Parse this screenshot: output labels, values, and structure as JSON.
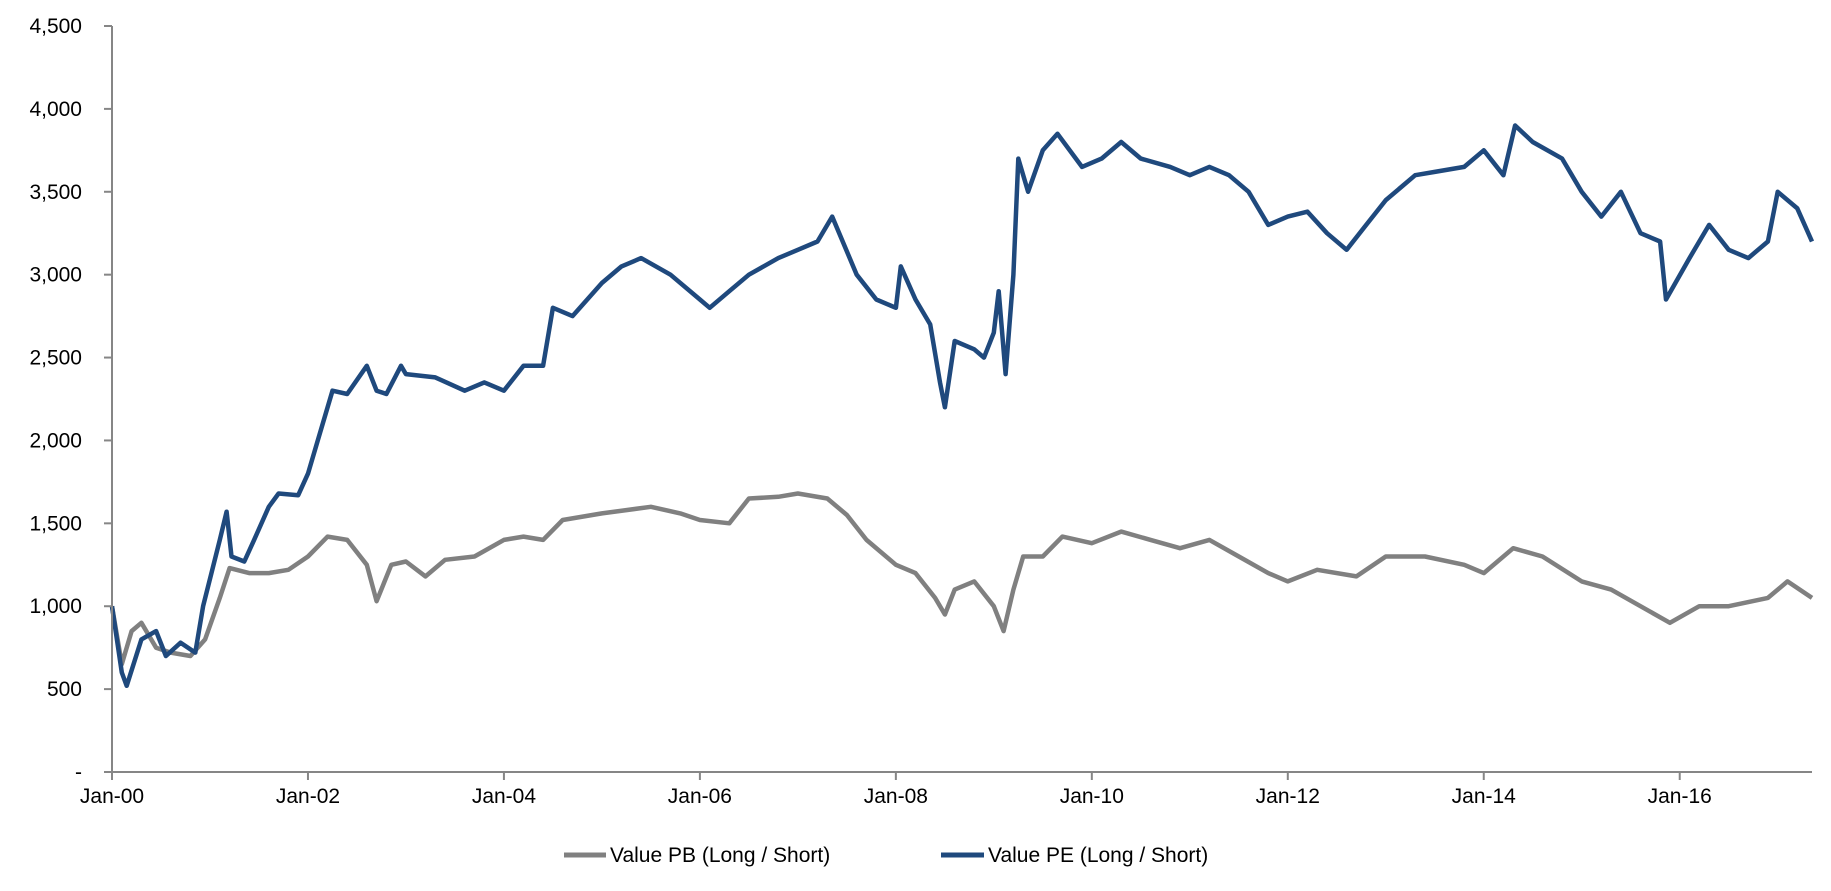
{
  "chart_data": {
    "type": "line",
    "title": "",
    "xlabel": "",
    "ylabel": "",
    "xlim": [
      2000,
      2017.35
    ],
    "ylim": [
      0,
      4500
    ],
    "yticks": [
      0,
      500,
      1000,
      1500,
      2000,
      2500,
      3000,
      3500,
      4000,
      4500
    ],
    "ytick_labels": [
      "-",
      "500",
      "1,000",
      "1,500",
      "2,000",
      "2,500",
      "3,000",
      "3,500",
      "4,000",
      "4,500"
    ],
    "xticks": [
      2000,
      2002,
      2004,
      2006,
      2008,
      2010,
      2012,
      2014,
      2016
    ],
    "xtick_labels": [
      "Jan-00",
      "Jan-02",
      "Jan-04",
      "Jan-06",
      "Jan-08",
      "Jan-10",
      "Jan-12",
      "Jan-14",
      "Jan-16"
    ],
    "grid": false,
    "legend_position": "bottom-center",
    "series": [
      {
        "name": "Value PB (Long / Short)",
        "color": "#808080",
        "x": [
          2000,
          2000.1,
          2000.2,
          2000.3,
          2000.45,
          2000.6,
          2000.8,
          2000.95,
          2001.1,
          2001.2,
          2001.4,
          2001.6,
          2001.8,
          2002.0,
          2002.2,
          2002.4,
          2002.6,
          2002.7,
          2002.85,
          2003.0,
          2003.2,
          2003.4,
          2003.7,
          2004.0,
          2004.2,
          2004.4,
          2004.6,
          2005.0,
          2005.5,
          2005.8,
          2006.0,
          2006.3,
          2006.5,
          2006.8,
          2007.0,
          2007.3,
          2007.5,
          2007.7,
          2008.0,
          2008.2,
          2008.4,
          2008.5,
          2008.6,
          2008.8,
          2009.0,
          2009.1,
          2009.2,
          2009.3,
          2009.5,
          2009.7,
          2010.0,
          2010.3,
          2010.6,
          2010.9,
          2011.2,
          2011.5,
          2011.8,
          2012.0,
          2012.3,
          2012.7,
          2013.0,
          2013.4,
          2013.8,
          2014.0,
          2014.3,
          2014.6,
          2015.0,
          2015.3,
          2015.6,
          2015.9,
          2016.2,
          2016.5,
          2016.9,
          2017.1,
          2017.35
        ],
        "y": [
          1000,
          650,
          850,
          900,
          750,
          720,
          700,
          800,
          1050,
          1230,
          1200,
          1200,
          1220,
          1300,
          1420,
          1400,
          1250,
          1030,
          1250,
          1270,
          1180,
          1280,
          1300,
          1400,
          1420,
          1400,
          1520,
          1560,
          1600,
          1560,
          1520,
          1500,
          1650,
          1660,
          1680,
          1650,
          1550,
          1400,
          1250,
          1200,
          1050,
          950,
          1100,
          1150,
          1000,
          850,
          1100,
          1300,
          1300,
          1420,
          1380,
          1450,
          1400,
          1350,
          1400,
          1300,
          1200,
          1150,
          1220,
          1180,
          1300,
          1300,
          1250,
          1200,
          1350,
          1300,
          1150,
          1100,
          1000,
          900,
          1000,
          1000,
          1050,
          1150,
          1050
        ]
      },
      {
        "name": "Value PE (Long / Short)",
        "color": "#1F497D",
        "x": [
          2000,
          2000.1,
          2000.15,
          2000.3,
          2000.45,
          2000.55,
          2000.7,
          2000.85,
          2000.93,
          2001.1,
          2001.17,
          2001.22,
          2001.35,
          2001.45,
          2001.6,
          2001.7,
          2001.9,
          2002.0,
          2002.1,
          2002.25,
          2002.4,
          2002.6,
          2002.7,
          2002.8,
          2002.95,
          2003.0,
          2003.3,
          2003.6,
          2003.8,
          2004.0,
          2004.2,
          2004.4,
          2004.5,
          2004.7,
          2005.0,
          2005.2,
          2005.4,
          2005.7,
          2006.0,
          2006.1,
          2006.3,
          2006.5,
          2006.8,
          2007.0,
          2007.2,
          2007.35,
          2007.6,
          2007.8,
          2008.0,
          2008.05,
          2008.2,
          2008.35,
          2008.45,
          2008.5,
          2008.6,
          2008.8,
          2008.9,
          2009.0,
          2009.05,
          2009.12,
          2009.2,
          2009.25,
          2009.35,
          2009.5,
          2009.65,
          2009.9,
          2010.1,
          2010.3,
          2010.5,
          2010.8,
          2011.0,
          2011.2,
          2011.4,
          2011.6,
          2011.8,
          2012.0,
          2012.2,
          2012.4,
          2012.6,
          2012.8,
          2013.0,
          2013.3,
          2013.5,
          2013.8,
          2014.0,
          2014.2,
          2014.32,
          2014.5,
          2014.8,
          2015.0,
          2015.2,
          2015.4,
          2015.6,
          2015.8,
          2015.86,
          2016.1,
          2016.3,
          2016.5,
          2016.7,
          2016.9,
          2017.0,
          2017.2,
          2017.35
        ],
        "y": [
          1000,
          600,
          520,
          800,
          850,
          700,
          780,
          720,
          1000,
          1400,
          1570,
          1300,
          1270,
          1400,
          1600,
          1680,
          1670,
          1800,
          2000,
          2300,
          2280,
          2450,
          2300,
          2280,
          2450,
          2400,
          2380,
          2300,
          2350,
          2300,
          2450,
          2450,
          2800,
          2750,
          2950,
          3050,
          3100,
          3000,
          2850,
          2800,
          2900,
          3000,
          3100,
          3150,
          3200,
          3350,
          3000,
          2850,
          2800,
          3050,
          2850,
          2700,
          2350,
          2200,
          2600,
          2550,
          2500,
          2650,
          2900,
          2400,
          3000,
          3700,
          3500,
          3750,
          3850,
          3650,
          3700,
          3800,
          3700,
          3650,
          3600,
          3650,
          3600,
          3500,
          3300,
          3350,
          3380,
          3250,
          3150,
          3300,
          3450,
          3600,
          3620,
          3650,
          3750,
          3600,
          3900,
          3800,
          3700,
          3500,
          3350,
          3500,
          3250,
          3200,
          2850,
          3100,
          3300,
          3150,
          3100,
          3200,
          3500,
          3400,
          3200
        ]
      }
    ]
  }
}
